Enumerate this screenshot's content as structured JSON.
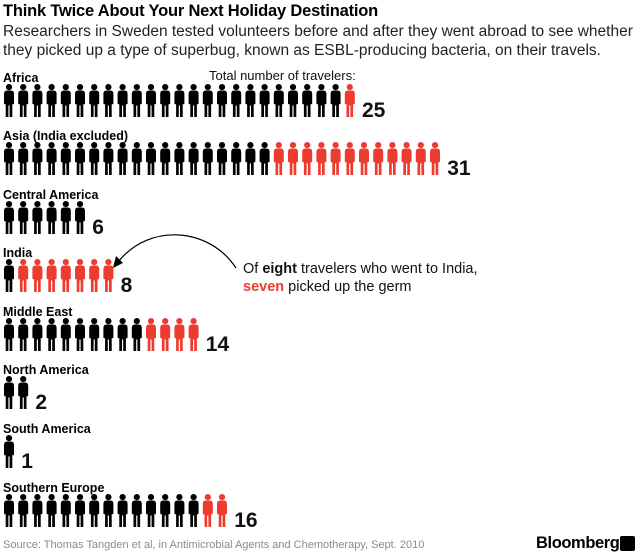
{
  "header": {
    "title": "Think Twice About Your Next Holiday Destination",
    "subtitle": "Researchers in Sweden tested volunteers before and after they went abroad to see whether they picked up a type of superbug, known as ESBL-producing bacteria, on their travels."
  },
  "chart_data": {
    "type": "pictogram",
    "legend_label": "Total number of travelers:",
    "colors": {
      "not_infected": "#000000",
      "infected": "#ee3b2f"
    },
    "categories": [
      "Africa",
      "Asia (India excluded)",
      "Central America",
      "India",
      "Middle East",
      "North America",
      "South America",
      "Southern Europe"
    ],
    "series": [
      {
        "name": "Total number of travelers",
        "values": [
          25,
          31,
          6,
          8,
          14,
          2,
          1,
          16
        ]
      },
      {
        "name": "Picked up ESBL-producing bacteria",
        "values": [
          1,
          12,
          0,
          7,
          4,
          0,
          0,
          2
        ]
      }
    ],
    "annotation": {
      "prefix": "Of ",
      "strong": "eight",
      "middle": " travelers who went to India,",
      "strong2": "seven",
      "suffix": " picked up the germ",
      "target": "India"
    }
  },
  "footer": {
    "source": "Source: Thomas Tangden et al, in Antimicrobial Agents and Chemotherapy, Sept. 2010",
    "brand": "Bloomberg"
  }
}
